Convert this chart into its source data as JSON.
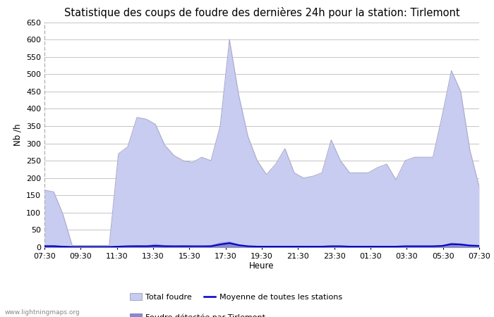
{
  "title": "Statistique des coups de foudre des dernières 24h pour la station: Tirlemont",
  "xlabel": "Heure",
  "ylabel": "Nb /h",
  "ylim": [
    0,
    650
  ],
  "yticks": [
    0,
    50,
    100,
    150,
    200,
    250,
    300,
    350,
    400,
    450,
    500,
    550,
    600,
    650
  ],
  "xtick_labels": [
    "07:30",
    "09:30",
    "11:30",
    "13:30",
    "15:30",
    "17:30",
    "19:30",
    "21:30",
    "23:30",
    "01:30",
    "03:30",
    "05:30",
    "07:30"
  ],
  "watermark": "www.lightningmaps.org",
  "total_foudre_color": "#c8ccf0",
  "total_foudre_edge": "#aaaacc",
  "foudre_tirlemont_color": "#8888cc",
  "moyenne_color": "#0000cc",
  "background_color": "#ffffff",
  "grid_color": "#bbbbbb",
  "title_fontsize": 10.5,
  "tick_fontsize": 8,
  "label_fontsize": 8.5,
  "total_foudre_values": [
    165,
    160,
    95,
    5,
    5,
    5,
    5,
    5,
    270,
    290,
    375,
    370,
    355,
    295,
    265,
    250,
    245,
    260,
    250,
    350,
    600,
    440,
    320,
    250,
    210,
    240,
    285,
    215,
    200,
    205,
    215,
    310,
    250,
    215,
    215,
    215,
    230,
    240,
    195,
    250,
    260,
    260,
    260,
    380,
    510,
    450,
    280,
    175
  ],
  "foudre_tirlemont_values": [
    5,
    5,
    2,
    1,
    1,
    1,
    1,
    1,
    2,
    3,
    5,
    4,
    8,
    5,
    3,
    4,
    3,
    2,
    5,
    12,
    15,
    8,
    3,
    2,
    2,
    2,
    2,
    2,
    2,
    2,
    2,
    3,
    3,
    2,
    2,
    2,
    2,
    2,
    2,
    3,
    3,
    3,
    3,
    5,
    12,
    10,
    6,
    5
  ],
  "moyenne_values": [
    3,
    3,
    2,
    1,
    1,
    1,
    1,
    1,
    2,
    3,
    3,
    3,
    4,
    3,
    3,
    3,
    3,
    3,
    3,
    8,
    12,
    6,
    3,
    2,
    2,
    2,
    2,
    2,
    2,
    2,
    2,
    3,
    3,
    2,
    2,
    2,
    2,
    2,
    2,
    3,
    3,
    3,
    3,
    4,
    9,
    8,
    5,
    4
  ]
}
